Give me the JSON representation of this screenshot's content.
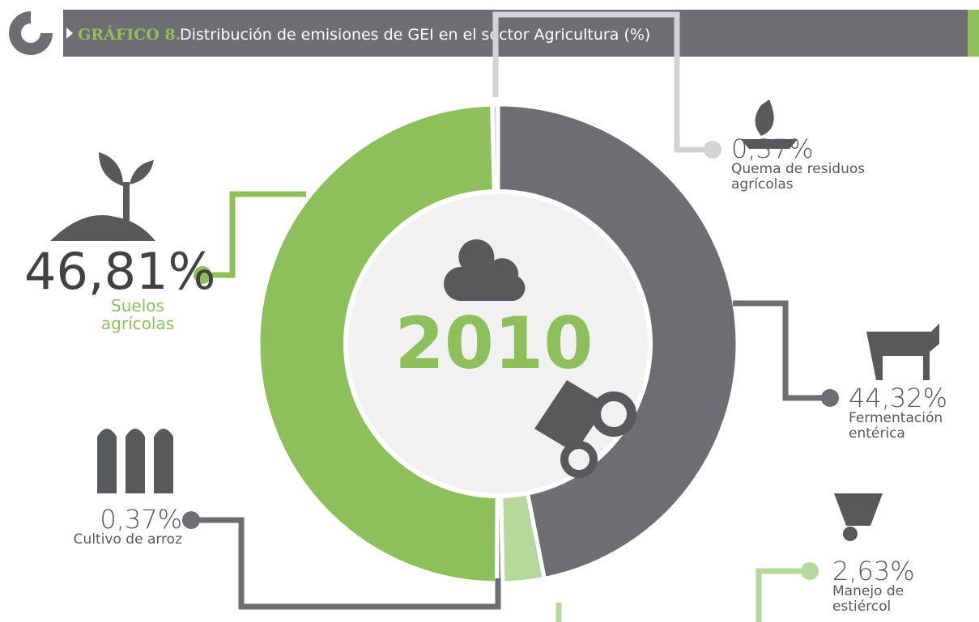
{
  "chart_data": {
    "type": "pie",
    "title_prefix": "GRÁFICO 8.",
    "title": "Distribución de emisiones de GEI en el sector Agricultura (%)",
    "center_label": "2010",
    "categories": [
      "Fermentación entérica",
      "Manejo de estiércol",
      "Cultivo de arroz",
      "Suelos agrícolas",
      "Quema de residuos agrícolas"
    ],
    "values": [
      44.32,
      2.63,
      0.37,
      46.81,
      0.37
    ],
    "value_labels": [
      "44,32%",
      "2,63%",
      "0,37%",
      "46,81%",
      "0,37%"
    ],
    "colors": [
      "#6d6e71",
      "#b5d99c",
      "#808285",
      "#8dc05a",
      "#d1d3d4"
    ]
  }
}
